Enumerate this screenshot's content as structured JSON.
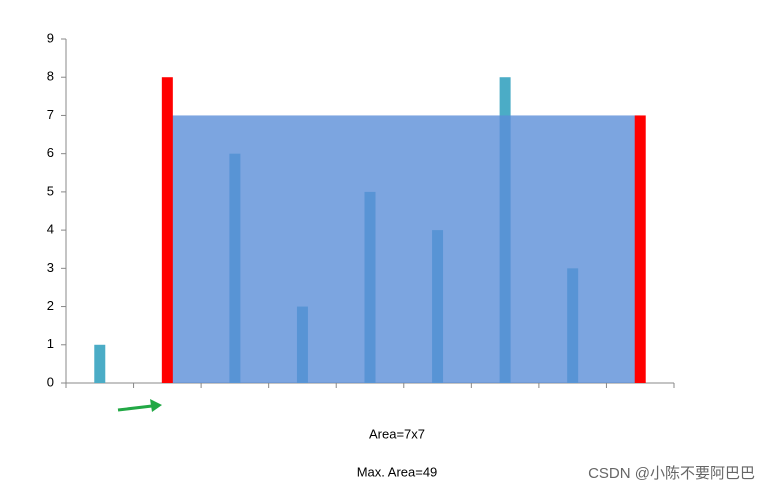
{
  "chart_data": {
    "type": "bar",
    "categories": [
      null,
      null,
      null,
      null,
      null,
      null,
      null,
      null,
      null
    ],
    "values": [
      1,
      8,
      6,
      2,
      5,
      4,
      8,
      3,
      7
    ],
    "color": "#4bacc6",
    "highlight": [
      1,
      8
    ],
    "highlight_color": "#ff0000",
    "area_color": "#5b8fd8",
    "ylim": [
      0,
      9
    ],
    "yticks": [
      0,
      1,
      2,
      3,
      4,
      5,
      6,
      7,
      8,
      9
    ],
    "annotations": [
      "Area=7x7",
      "Max. Area=49"
    ]
  },
  "watermark": "CSDN @小陈不要阿巴巴"
}
